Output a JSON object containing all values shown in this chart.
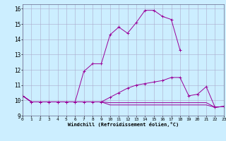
{
  "xlabel": "Windchill (Refroidissement éolien,°C)",
  "x": [
    0,
    1,
    2,
    3,
    4,
    5,
    6,
    7,
    8,
    9,
    10,
    11,
    12,
    13,
    14,
    15,
    16,
    17,
    18,
    19,
    20,
    21,
    22,
    23
  ],
  "line1": [
    10.3,
    9.9,
    9.9,
    9.9,
    9.9,
    9.9,
    9.9,
    11.9,
    12.4,
    12.4,
    14.3,
    14.8,
    14.4,
    15.1,
    15.9,
    15.9,
    15.5,
    15.3,
    13.3,
    null,
    null,
    null,
    null,
    null
  ],
  "line2": [
    10.3,
    9.9,
    9.9,
    9.9,
    9.9,
    9.9,
    9.9,
    9.9,
    9.9,
    9.9,
    10.2,
    10.5,
    10.8,
    11.0,
    11.1,
    11.2,
    11.3,
    11.5,
    11.5,
    10.3,
    10.4,
    10.9,
    9.55,
    9.6
  ],
  "line3": [
    10.3,
    9.9,
    9.9,
    9.9,
    9.9,
    9.9,
    9.9,
    9.9,
    9.9,
    9.9,
    9.85,
    9.85,
    9.85,
    9.85,
    9.85,
    9.85,
    9.85,
    9.85,
    9.85,
    9.85,
    9.85,
    9.85,
    9.55,
    9.6
  ],
  "line4": [
    10.3,
    9.9,
    9.9,
    9.9,
    9.9,
    9.9,
    9.9,
    9.9,
    9.9,
    9.9,
    9.7,
    9.7,
    9.7,
    9.7,
    9.7,
    9.7,
    9.7,
    9.7,
    9.7,
    9.7,
    9.7,
    9.7,
    9.55,
    9.6
  ],
  "line_color": "#990099",
  "bg_color": "#cceeff",
  "grid_color": "#aaaacc",
  "ylim": [
    9.0,
    16.3
  ],
  "xlim": [
    0,
    23
  ],
  "yticks": [
    9,
    10,
    11,
    12,
    13,
    14,
    15,
    16
  ],
  "xticks": [
    0,
    1,
    2,
    3,
    4,
    5,
    6,
    7,
    8,
    9,
    10,
    11,
    12,
    13,
    14,
    15,
    16,
    17,
    18,
    19,
    20,
    21,
    22,
    23
  ]
}
